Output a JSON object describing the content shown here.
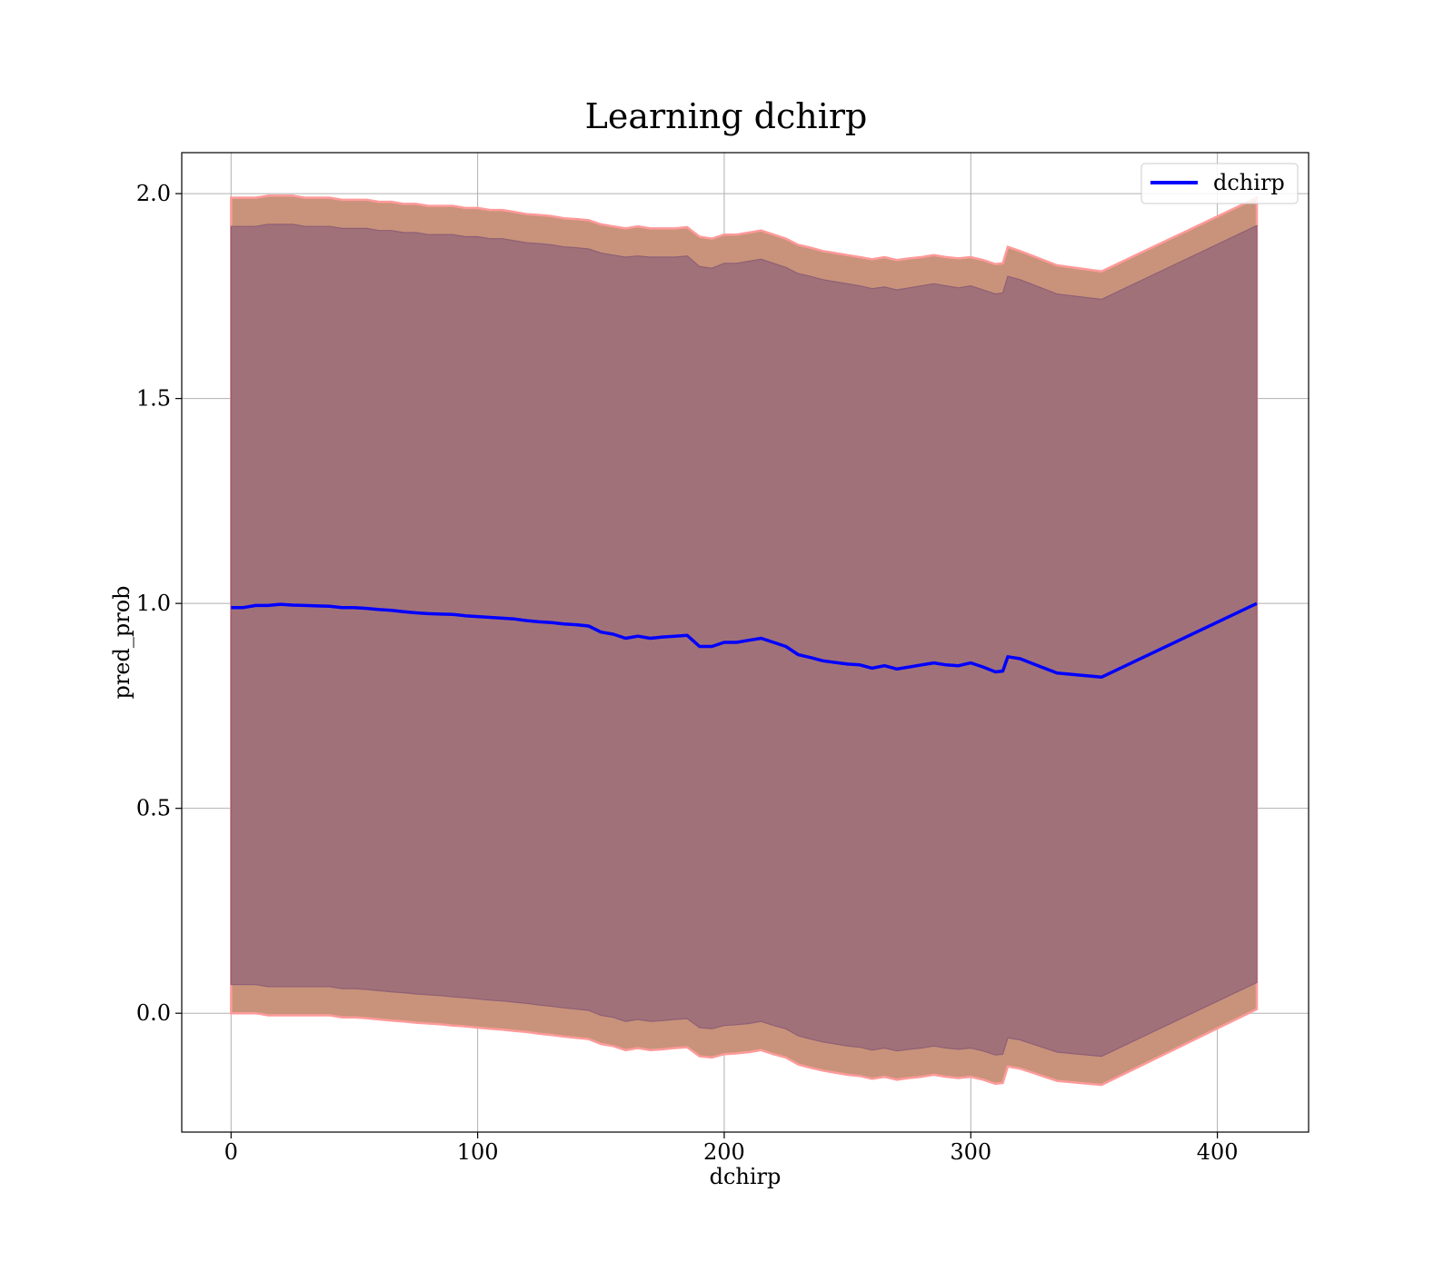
{
  "chart_data": {
    "type": "line",
    "title": "Learning dchirp",
    "xlabel": "dchirp",
    "ylabel": "pred_prob",
    "xlim": [
      -20,
      437
    ],
    "ylim": [
      -0.29,
      2.1
    ],
    "xticks": [
      0,
      100,
      200,
      300,
      400
    ],
    "yticks": [
      0.0,
      0.5,
      1.0,
      1.5,
      2.0
    ],
    "xtick_labels": [
      "0",
      "100",
      "200",
      "300",
      "400"
    ],
    "ytick_labels": [
      "0.0",
      "0.5",
      "1.0",
      "1.5",
      "2.0"
    ],
    "grid": true,
    "legend": {
      "position": "top-right",
      "entries": [
        "dchirp"
      ]
    },
    "colors": {
      "line": "#0000ff",
      "band_outer_fill": "#c8937a",
      "band_outer_edge": "#ff9a9a",
      "band_inner_fill": "#a1717a",
      "band_inner_edge": "#8f5f76",
      "grid": "#b0b0b0"
    },
    "series": [
      {
        "name": "dchirp",
        "x": [
          0,
          5,
          10,
          15,
          20,
          25,
          30,
          35,
          40,
          45,
          50,
          55,
          60,
          65,
          70,
          75,
          80,
          85,
          90,
          95,
          100,
          105,
          110,
          115,
          120,
          125,
          130,
          135,
          140,
          145,
          150,
          155,
          160,
          165,
          170,
          175,
          180,
          185,
          190,
          195,
          200,
          205,
          210,
          215,
          220,
          225,
          230,
          235,
          240,
          245,
          250,
          255,
          260,
          265,
          270,
          275,
          280,
          285,
          290,
          295,
          300,
          305,
          310,
          313,
          315,
          320,
          335,
          353,
          416
        ],
        "y": [
          0.99,
          0.99,
          0.995,
          0.995,
          0.998,
          0.996,
          0.995,
          0.994,
          0.993,
          0.99,
          0.99,
          0.988,
          0.985,
          0.983,
          0.98,
          0.977,
          0.975,
          0.974,
          0.973,
          0.97,
          0.968,
          0.966,
          0.964,
          0.962,
          0.958,
          0.955,
          0.953,
          0.95,
          0.948,
          0.945,
          0.93,
          0.925,
          0.915,
          0.92,
          0.915,
          0.918,
          0.92,
          0.922,
          0.895,
          0.895,
          0.905,
          0.905,
          0.91,
          0.915,
          0.905,
          0.895,
          0.875,
          0.868,
          0.86,
          0.856,
          0.852,
          0.85,
          0.842,
          0.848,
          0.84,
          0.845,
          0.85,
          0.855,
          0.85,
          0.848,
          0.855,
          0.845,
          0.833,
          0.835,
          0.87,
          0.865,
          0.83,
          0.82,
          1.0
        ],
        "outer_upper": [
          1.99,
          1.99,
          1.99,
          1.995,
          1.995,
          1.995,
          1.99,
          1.99,
          1.99,
          1.985,
          1.985,
          1.985,
          1.98,
          1.98,
          1.975,
          1.975,
          1.97,
          1.97,
          1.97,
          1.965,
          1.965,
          1.96,
          1.96,
          1.955,
          1.95,
          1.948,
          1.945,
          1.94,
          1.938,
          1.935,
          1.925,
          1.92,
          1.915,
          1.92,
          1.915,
          1.915,
          1.915,
          1.918,
          1.895,
          1.89,
          1.9,
          1.9,
          1.905,
          1.91,
          1.9,
          1.89,
          1.875,
          1.868,
          1.86,
          1.855,
          1.85,
          1.845,
          1.84,
          1.845,
          1.838,
          1.842,
          1.845,
          1.85,
          1.845,
          1.842,
          1.845,
          1.838,
          1.828,
          1.83,
          1.87,
          1.86,
          1.825,
          1.81,
          1.99
        ],
        "outer_lower": [
          0.0,
          0.0,
          0.0,
          -0.005,
          -0.005,
          -0.005,
          -0.005,
          -0.005,
          -0.005,
          -0.01,
          -0.01,
          -0.012,
          -0.015,
          -0.018,
          -0.02,
          -0.023,
          -0.025,
          -0.027,
          -0.03,
          -0.032,
          -0.035,
          -0.038,
          -0.04,
          -0.043,
          -0.046,
          -0.05,
          -0.053,
          -0.057,
          -0.06,
          -0.063,
          -0.075,
          -0.08,
          -0.09,
          -0.085,
          -0.09,
          -0.088,
          -0.085,
          -0.083,
          -0.105,
          -0.108,
          -0.1,
          -0.098,
          -0.095,
          -0.09,
          -0.1,
          -0.108,
          -0.125,
          -0.133,
          -0.14,
          -0.145,
          -0.15,
          -0.153,
          -0.16,
          -0.155,
          -0.162,
          -0.158,
          -0.155,
          -0.15,
          -0.155,
          -0.158,
          -0.155,
          -0.162,
          -0.172,
          -0.17,
          -0.13,
          -0.135,
          -0.165,
          -0.175,
          0.01
        ],
        "inner_upper": [
          1.92,
          1.92,
          1.92,
          1.925,
          1.925,
          1.925,
          1.92,
          1.92,
          1.92,
          1.915,
          1.915,
          1.915,
          1.91,
          1.91,
          1.905,
          1.905,
          1.9,
          1.9,
          1.9,
          1.895,
          1.895,
          1.89,
          1.89,
          1.885,
          1.88,
          1.878,
          1.875,
          1.87,
          1.868,
          1.865,
          1.855,
          1.85,
          1.845,
          1.848,
          1.845,
          1.845,
          1.845,
          1.848,
          1.822,
          1.818,
          1.83,
          1.83,
          1.835,
          1.84,
          1.83,
          1.82,
          1.805,
          1.798,
          1.79,
          1.785,
          1.78,
          1.775,
          1.768,
          1.772,
          1.765,
          1.77,
          1.775,
          1.78,
          1.775,
          1.77,
          1.775,
          1.765,
          1.755,
          1.758,
          1.798,
          1.79,
          1.755,
          1.742,
          1.922
        ],
        "inner_lower": [
          0.07,
          0.07,
          0.07,
          0.065,
          0.065,
          0.065,
          0.065,
          0.065,
          0.065,
          0.06,
          0.06,
          0.058,
          0.055,
          0.052,
          0.05,
          0.047,
          0.045,
          0.043,
          0.04,
          0.038,
          0.035,
          0.032,
          0.03,
          0.027,
          0.024,
          0.02,
          0.017,
          0.013,
          0.01,
          0.007,
          -0.005,
          -0.01,
          -0.02,
          -0.015,
          -0.02,
          -0.018,
          -0.015,
          -0.013,
          -0.035,
          -0.038,
          -0.03,
          -0.028,
          -0.025,
          -0.02,
          -0.03,
          -0.038,
          -0.055,
          -0.063,
          -0.07,
          -0.075,
          -0.08,
          -0.083,
          -0.09,
          -0.085,
          -0.092,
          -0.088,
          -0.085,
          -0.08,
          -0.085,
          -0.088,
          -0.085,
          -0.092,
          -0.102,
          -0.1,
          -0.06,
          -0.065,
          -0.095,
          -0.105,
          0.075
        ]
      }
    ]
  }
}
